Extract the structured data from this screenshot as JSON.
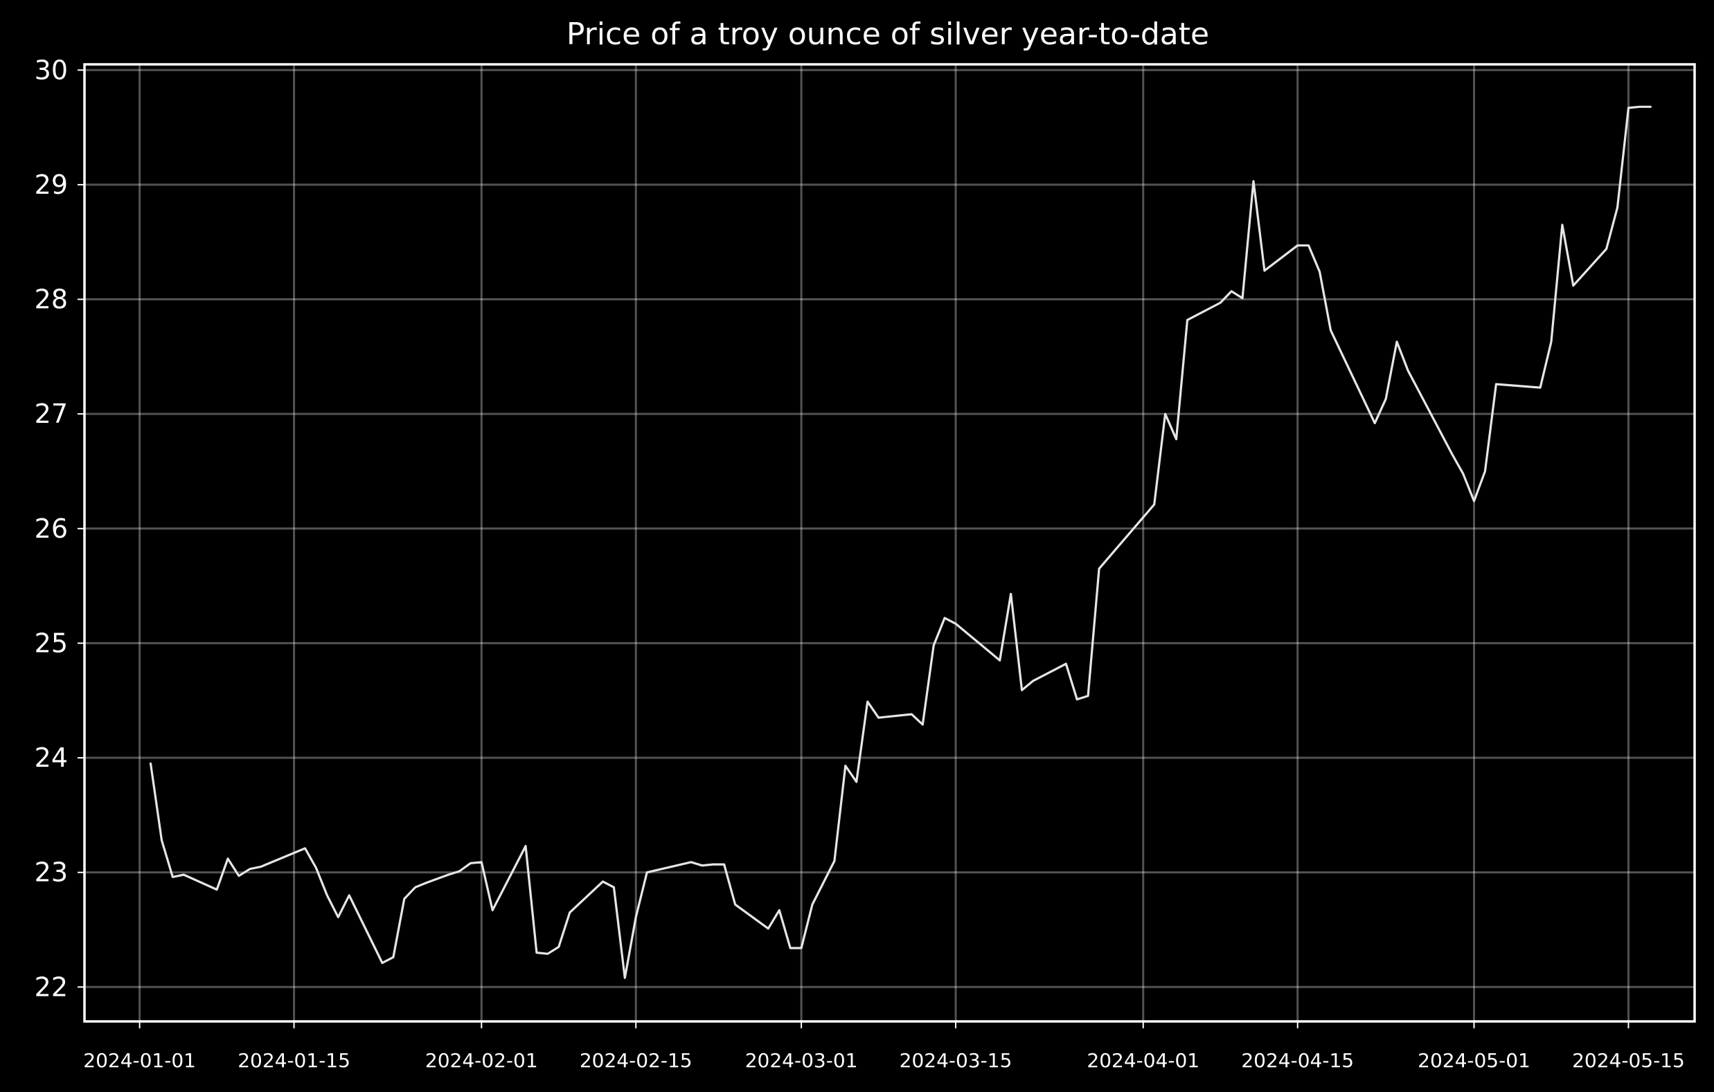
{
  "chart_data": {
    "type": "line",
    "title": "Price of a troy ounce of silver year-to-date",
    "xlabel": "",
    "ylabel": "",
    "x_axis_type": "date",
    "xlim": [
      "2023-12-27",
      "2024-05-21"
    ],
    "ylim": [
      21.7,
      30.05
    ],
    "grid": true,
    "legend": "none",
    "line_color": "#e6e6e6",
    "grid_color": "#ffffff",
    "background_color": "#000000",
    "x_ticks": [
      "2024-01-01",
      "2024-01-15",
      "2024-02-01",
      "2024-02-15",
      "2024-03-01",
      "2024-03-15",
      "2024-04-01",
      "2024-04-15",
      "2024-05-01",
      "2024-05-15"
    ],
    "y_ticks": [
      22,
      23,
      24,
      25,
      26,
      27,
      28,
      29,
      30
    ],
    "series": [
      {
        "x": [
          "2024-01-02",
          "2024-01-03",
          "2024-01-04",
          "2024-01-05",
          "2024-01-08",
          "2024-01-09",
          "2024-01-10",
          "2024-01-11",
          "2024-01-12",
          "2024-01-16",
          "2024-01-17",
          "2024-01-18",
          "2024-01-19",
          "2024-01-20",
          "2024-01-23",
          "2024-01-24",
          "2024-01-25",
          "2024-01-26",
          "2024-01-27",
          "2024-01-29",
          "2024-01-30",
          "2024-01-31",
          "2024-02-01",
          "2024-02-02",
          "2024-02-05",
          "2024-02-06",
          "2024-02-07",
          "2024-02-08",
          "2024-02-09",
          "2024-02-12",
          "2024-02-13",
          "2024-02-14",
          "2024-02-15",
          "2024-02-16",
          "2024-02-20",
          "2024-02-21",
          "2024-02-22",
          "2024-02-23",
          "2024-02-24",
          "2024-02-27",
          "2024-02-28",
          "2024-02-29",
          "2024-03-01",
          "2024-03-02",
          "2024-03-04",
          "2024-03-05",
          "2024-03-06",
          "2024-03-07",
          "2024-03-08",
          "2024-03-11",
          "2024-03-12",
          "2024-03-13",
          "2024-03-14",
          "2024-03-15",
          "2024-03-18",
          "2024-03-19",
          "2024-03-20",
          "2024-03-21",
          "2024-03-22",
          "2024-03-25",
          "2024-03-26",
          "2024-03-27",
          "2024-03-28",
          "2024-04-02",
          "2024-04-03",
          "2024-04-04",
          "2024-04-05",
          "2024-04-08",
          "2024-04-09",
          "2024-04-10",
          "2024-04-11",
          "2024-04-12",
          "2024-04-15",
          "2024-04-16",
          "2024-04-17",
          "2024-04-18",
          "2024-04-22",
          "2024-04-23",
          "2024-04-24",
          "2024-04-25",
          "2024-04-29",
          "2024-04-30",
          "2024-05-01",
          "2024-05-02",
          "2024-05-03",
          "2024-05-07",
          "2024-05-08",
          "2024-05-09",
          "2024-05-10",
          "2024-05-13",
          "2024-05-14",
          "2024-05-15",
          "2024-05-16",
          "2024-05-17"
        ],
        "y": [
          23.95,
          23.28,
          22.96,
          22.98,
          22.85,
          23.12,
          22.97,
          23.03,
          23.05,
          23.21,
          23.04,
          22.8,
          22.61,
          22.8,
          22.21,
          22.26,
          22.77,
          22.87,
          22.91,
          22.98,
          23.01,
          23.08,
          23.09,
          22.67,
          23.23,
          22.3,
          22.29,
          22.35,
          22.65,
          22.92,
          22.87,
          22.08,
          22.61,
          23.0,
          23.09,
          23.06,
          23.07,
          23.07,
          22.72,
          22.51,
          22.67,
          22.34,
          22.34,
          22.72,
          23.1,
          23.93,
          23.79,
          24.49,
          24.35,
          24.38,
          24.29,
          24.98,
          25.22,
          25.17,
          24.93,
          24.85,
          25.43,
          24.59,
          24.67,
          24.82,
          24.51,
          24.54,
          25.65,
          26.21,
          27.0,
          26.78,
          27.82,
          27.97,
          28.07,
          28.01,
          29.03,
          28.25,
          28.47,
          28.47,
          28.24,
          27.73,
          26.92,
          27.13,
          27.63,
          27.38,
          26.65,
          26.48,
          26.24,
          26.5,
          27.26,
          27.23,
          27.63,
          28.65,
          28.12,
          28.44,
          28.8,
          29.67,
          29.68,
          29.68
        ]
      }
    ]
  }
}
